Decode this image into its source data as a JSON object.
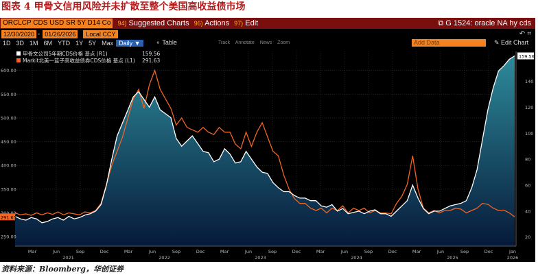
{
  "figure_title": "图表 4  甲骨文信用风险并未扩散至整个美国高收益债市场",
  "toolbar": {
    "ticker": "ORCLCP CDS USD SR 5Y D14 Co",
    "menu": [
      {
        "num": "94)",
        "label": "Suggested Charts"
      },
      {
        "num": "96)",
        "label": "Actions"
      },
      {
        "num": "97)",
        "label": "Edit"
      }
    ],
    "right_title": "G 1524: oracle NA hy cds",
    "start_date": "12/30/2020",
    "end_date": "01/26/2026",
    "currency": "Local CCY",
    "periods": [
      "1D",
      "3D",
      "1M",
      "6M",
      "YTD",
      "1Y",
      "5Y",
      "Max"
    ],
    "frequency": "Daily ▼",
    "table_label": "Table",
    "tools": [
      "Track",
      "Annotate",
      "News",
      "Zoom"
    ],
    "add_data": "Add Data",
    "edit_chart": "Edit Chart"
  },
  "source_text": "资料来源：Bloomberg，华创证券",
  "colors": {
    "white_series": "#ffffff",
    "orange_series": "#f26522",
    "area_top": "#2e8a9a",
    "area_bottom": "#061a3a"
  },
  "chart_data": {
    "type": "line",
    "x_ticks": [
      "Mar",
      "Jun",
      "Sep",
      "Dec",
      "Mar",
      "Jun",
      "Sep",
      "Dec",
      "Mar",
      "Jun",
      "Sep",
      "Dec",
      "Mar",
      "Jun",
      "Sep",
      "Dec",
      "Mar",
      "Jun",
      "Sep",
      "Dec",
      "Jan"
    ],
    "year_labels": [
      "2021",
      "2022",
      "2023",
      "2024",
      "2025",
      "2026"
    ],
    "left_axis": {
      "ticks": [
        250,
        300,
        350,
        400,
        450,
        500,
        550,
        600
      ],
      "range": [
        230,
        640
      ],
      "series": "Markit北美一篮子高收益债券CDS价格 基点 (L1)"
    },
    "right_axis": {
      "ticks": [
        20,
        40,
        60,
        80,
        100,
        120,
        140
      ],
      "range": [
        13,
        163
      ],
      "series": "甲骨文公司5年期CDS价格 基点 (R1)"
    },
    "series": [
      {
        "name": "甲骨文公司5年期CDS价格 基点 (R1)",
        "axis": "right",
        "last": "159.56",
        "values": [
          36,
          34,
          33,
          35,
          34,
          31,
          32,
          34,
          35,
          33,
          36,
          34,
          35,
          37,
          38,
          40,
          45,
          60,
          80,
          98,
          108,
          118,
          128,
          132,
          126,
          120,
          128,
          118,
          115,
          112,
          96,
          90,
          94,
          98,
          92,
          86,
          85,
          78,
          80,
          88,
          84,
          77,
          78,
          86,
          80,
          74,
          70,
          69,
          62,
          58,
          55,
          55,
          52,
          50,
          50,
          48,
          48,
          44,
          43,
          45,
          40,
          42,
          38,
          39,
          40,
          38,
          40,
          41,
          38,
          38,
          36,
          40,
          44,
          48,
          60,
          50,
          42,
          38,
          40,
          40,
          42,
          44,
          45,
          46,
          48,
          58,
          72,
          95,
          118,
          135,
          148,
          152,
          157,
          159.56
        ]
      },
      {
        "name": "Markit北美一篮子高收益债券CDS价格 基点 (L1)",
        "axis": "left",
        "last": "291.63",
        "values": [
          300,
          296,
          298,
          295,
          300,
          296,
          300,
          297,
          302,
          296,
          300,
          298,
          296,
          302,
          300,
          305,
          320,
          360,
          400,
          430,
          460,
          500,
          540,
          560,
          520,
          570,
          600,
          560,
          540,
          520,
          485,
          500,
          480,
          475,
          470,
          480,
          470,
          465,
          480,
          470,
          470,
          445,
          435,
          470,
          440,
          470,
          490,
          460,
          430,
          420,
          380,
          350,
          330,
          320,
          320,
          310,
          305,
          310,
          300,
          310,
          305,
          315,
          300,
          310,
          305,
          310,
          300,
          305,
          300,
          300,
          298,
          320,
          335,
          360,
          420,
          350,
          310,
          300,
          305,
          300,
          305,
          305,
          310,
          308,
          300,
          305,
          310,
          320,
          318,
          310,
          305,
          306,
          300,
          291.63
        ]
      }
    ]
  }
}
